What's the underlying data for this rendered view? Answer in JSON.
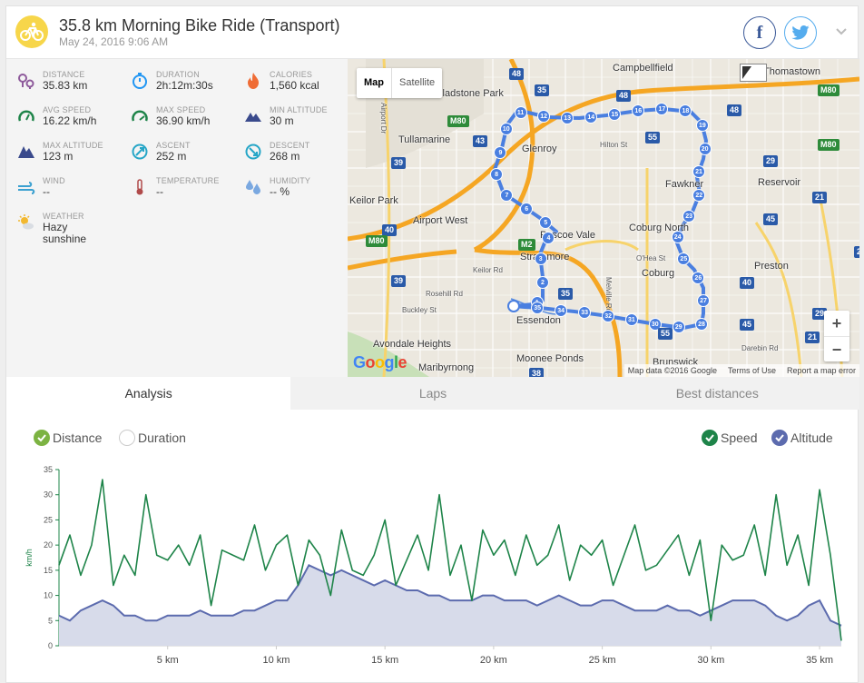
{
  "header": {
    "title": "35.8 km Morning Bike Ride (Transport)",
    "date": "May 24, 2016 9:06 AM",
    "facebook_label": "f"
  },
  "stats": [
    {
      "label": "DISTANCE",
      "value": "35.83 km",
      "icon": "distance-icon",
      "color": "#8e5a9b"
    },
    {
      "label": "DURATION",
      "value": "2h:12m:30s",
      "icon": "stopwatch-icon",
      "color": "#2196f3"
    },
    {
      "label": "CALORIES",
      "value": "1,560 kcal",
      "icon": "flame-icon",
      "color": "#ef6c35"
    },
    {
      "label": "AVG SPEED",
      "value": "16.22 km/h",
      "icon": "speedometer-icon",
      "color": "#1e8449"
    },
    {
      "label": "MAX SPEED",
      "value": "36.90 km/h",
      "icon": "speedometer-icon",
      "color": "#1e8449"
    },
    {
      "label": "MIN ALTITUDE",
      "value": "30 m",
      "icon": "mountain-icon",
      "color": "#3a4a8c"
    },
    {
      "label": "MAX ALTITUDE",
      "value": "123 m",
      "icon": "mountain-icon",
      "color": "#3a4a8c"
    },
    {
      "label": "ASCENT",
      "value": "252 m",
      "icon": "ascent-icon",
      "color": "#26a6c7"
    },
    {
      "label": "DESCENT",
      "value": "268 m",
      "icon": "descent-icon",
      "color": "#26a6c7"
    },
    {
      "label": "WIND",
      "value": "--",
      "icon": "wind-icon",
      "color": "#3aa0d0"
    },
    {
      "label": "TEMPERATURE",
      "value": "--",
      "icon": "thermometer-icon",
      "color": "#b04a4a"
    },
    {
      "label": "HUMIDITY",
      "value": "-- %",
      "icon": "humidity-icon",
      "color": "#7aa8e0"
    },
    {
      "label": "WEATHER",
      "value": "Hazy sunshine",
      "icon": "weather-icon",
      "color": "#f2b830"
    }
  ],
  "map": {
    "map_label": "Map",
    "satellite_label": "Satellite",
    "google_label": "Google",
    "attribution": [
      "Map data ©2016 Google",
      "Terms of Use",
      "Report a map error"
    ],
    "zoom_in": "+",
    "zoom_out": "−",
    "places": [
      "Campbellfield",
      "Thomastown",
      "Gladstone Park",
      "Tullamarine",
      "Glenroy",
      "Hilton St",
      "Fawkner",
      "Reservoir",
      "Keilor Park",
      "Airport West",
      "Pascoe Vale",
      "Coburg North",
      "Strathmore",
      "O'Hea St",
      "Coburg",
      "Preston",
      "Keilor Rd",
      "Rosehill Rd",
      "Buckley St",
      "Essendon",
      "Melville Rd",
      "Avondale Heights",
      "Maribyrnong",
      "Moonee Ponds",
      "Brunswick",
      "Darebin Rd",
      "Airport Dr"
    ],
    "highway_badges": [
      "48",
      "35",
      "48",
      "M80",
      "M80",
      "43",
      "39",
      "55",
      "48",
      "40",
      "M80",
      "M2",
      "39",
      "35",
      "40",
      "45",
      "29",
      "21",
      "21",
      "21",
      "45",
      "55",
      "38",
      "29",
      "M80"
    ],
    "route_markers": [
      "1",
      "2",
      "3",
      "4",
      "5",
      "6",
      "7",
      "8",
      "9",
      "10",
      "11",
      "12",
      "13",
      "14",
      "15",
      "16",
      "17",
      "18",
      "19",
      "20",
      "21",
      "22",
      "23",
      "24",
      "25",
      "26",
      "27",
      "28",
      "29",
      "30",
      "31",
      "32",
      "33",
      "34",
      "35"
    ]
  },
  "tabs": [
    "Analysis",
    "Laps",
    "Best distances"
  ],
  "chart_options": {
    "x_axis": [
      {
        "label": "Distance",
        "checked": true
      },
      {
        "label": "Duration",
        "checked": false
      }
    ],
    "series": [
      {
        "label": "Speed",
        "checked": true,
        "color": "#1e8449"
      },
      {
        "label": "Altitude",
        "checked": true,
        "color": "#5c6bae"
      }
    ]
  },
  "chart_data": {
    "type": "line",
    "xlabel": "",
    "ylabel": "km/h",
    "xlim": [
      0,
      36
    ],
    "ylim": [
      0,
      35
    ],
    "x_ticks": [
      "5 km",
      "10 km",
      "15 km",
      "20 km",
      "25 km",
      "30 km",
      "35 km"
    ],
    "x_tick_values": [
      5,
      10,
      15,
      20,
      25,
      30,
      35
    ],
    "y_ticks": [
      0,
      5,
      10,
      15,
      20,
      25,
      30,
      35
    ],
    "grid": false,
    "x": [
      0,
      0.5,
      1,
      1.5,
      2,
      2.5,
      3,
      3.5,
      4,
      4.5,
      5,
      5.5,
      6,
      6.5,
      7,
      7.5,
      8,
      8.5,
      9,
      9.5,
      10,
      10.5,
      11,
      11.5,
      12,
      12.5,
      13,
      13.5,
      14,
      14.5,
      15,
      15.5,
      16,
      16.5,
      17,
      17.5,
      18,
      18.5,
      19,
      19.5,
      20,
      20.5,
      21,
      21.5,
      22,
      22.5,
      23,
      23.5,
      24,
      24.5,
      25,
      25.5,
      26,
      26.5,
      27,
      27.5,
      28,
      28.5,
      29,
      29.5,
      30,
      30.5,
      31,
      31.5,
      32,
      32.5,
      33,
      33.5,
      34,
      34.5,
      35,
      35.5,
      36
    ],
    "series": [
      {
        "name": "Speed",
        "color": "#1e8449",
        "values": [
          16,
          22,
          14,
          20,
          33,
          12,
          18,
          14,
          30,
          18,
          17,
          20,
          16,
          22,
          8,
          19,
          18,
          17,
          24,
          15,
          20,
          22,
          12,
          21,
          18,
          10,
          23,
          15,
          14,
          18,
          25,
          12,
          17,
          22,
          15,
          30,
          14,
          20,
          9,
          23,
          18,
          21,
          14,
          22,
          16,
          18,
          24,
          13,
          20,
          18,
          21,
          12,
          18,
          24,
          15,
          16,
          19,
          22,
          14,
          21,
          5,
          20,
          17,
          18,
          24,
          14,
          30,
          16,
          22,
          12,
          31,
          18,
          1
        ]
      },
      {
        "name": "Altitude",
        "color": "#5c6bae",
        "values": [
          6,
          5,
          7,
          8,
          9,
          8,
          6,
          6,
          5,
          5,
          6,
          6,
          6,
          7,
          6,
          6,
          6,
          7,
          7,
          8,
          9,
          9,
          12,
          16,
          15,
          14,
          15,
          14,
          13,
          12,
          13,
          12,
          11,
          11,
          10,
          10,
          9,
          9,
          9,
          10,
          10,
          9,
          9,
          9,
          8,
          9,
          10,
          9,
          8,
          8,
          9,
          9,
          8,
          7,
          7,
          7,
          8,
          7,
          7,
          6,
          7,
          8,
          9,
          9,
          9,
          8,
          6,
          5,
          6,
          8,
          9,
          5,
          4
        ]
      }
    ]
  }
}
